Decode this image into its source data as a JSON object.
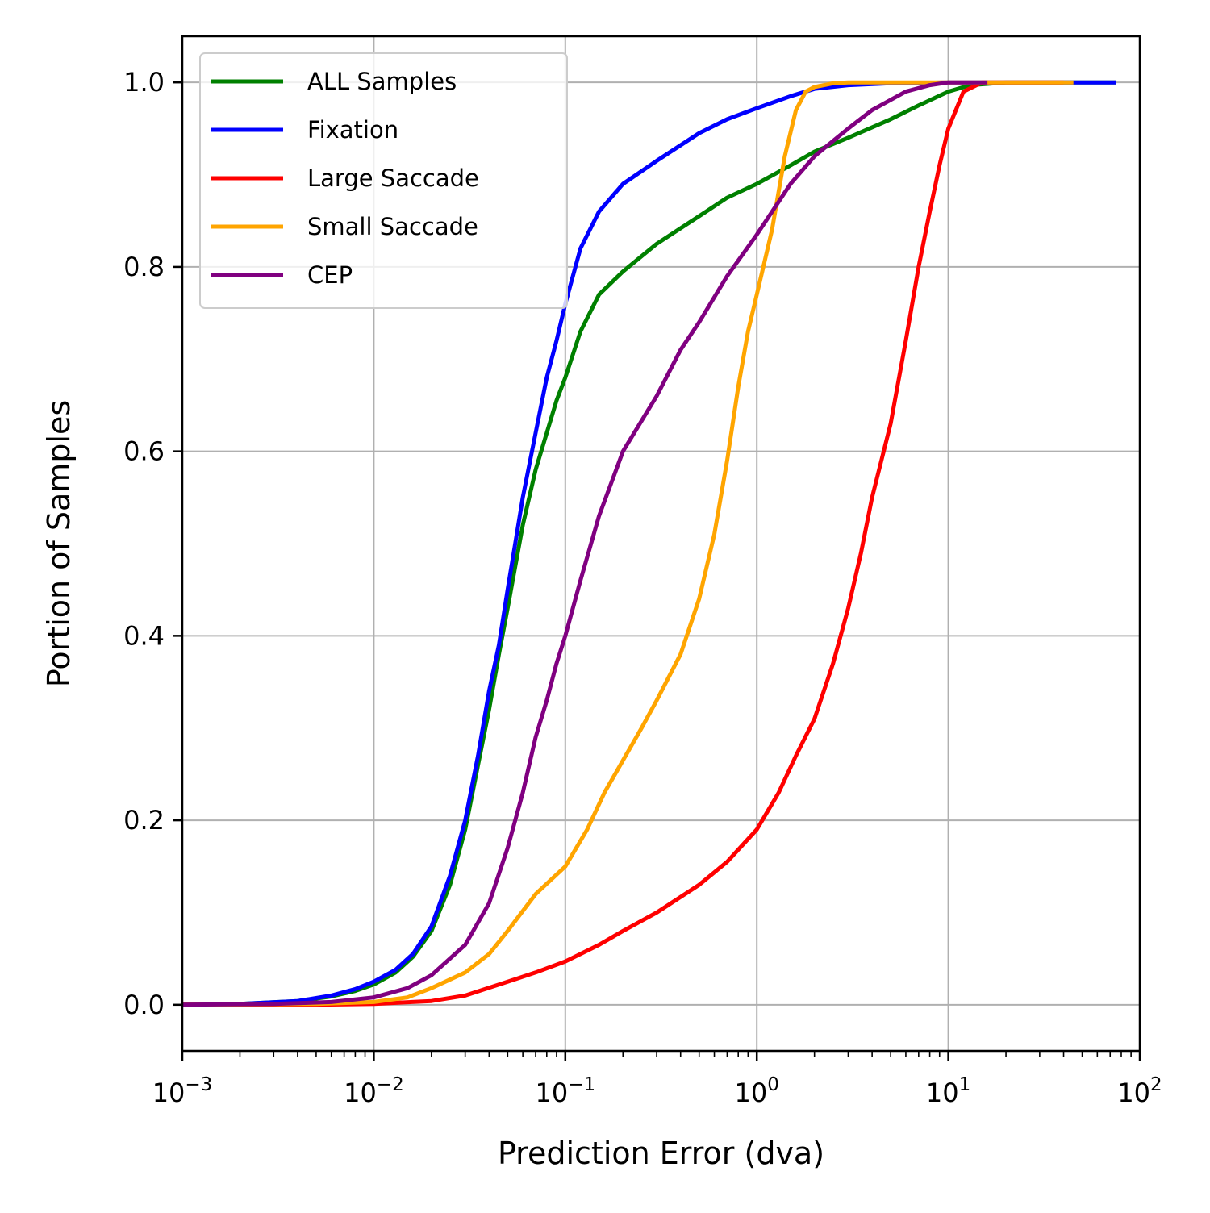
{
  "chart_data": {
    "type": "line",
    "xlabel": "Prediction Error (dva)",
    "ylabel": "Portion of Samples",
    "x_scale": "log",
    "xlim": [
      0.001,
      100
    ],
    "ylim": [
      -0.05,
      1.05
    ],
    "x_ticks": [
      {
        "value": 0.001,
        "base": "10",
        "exp": "−3"
      },
      {
        "value": 0.01,
        "base": "10",
        "exp": "−2"
      },
      {
        "value": 0.1,
        "base": "10",
        "exp": "−1"
      },
      {
        "value": 1,
        "base": "10",
        "exp": "0"
      },
      {
        "value": 10,
        "base": "10",
        "exp": "1"
      },
      {
        "value": 100,
        "base": "10",
        "exp": "2"
      }
    ],
    "y_ticks": [
      {
        "value": 0.0,
        "label": "0.0"
      },
      {
        "value": 0.2,
        "label": "0.2"
      },
      {
        "value": 0.4,
        "label": "0.4"
      },
      {
        "value": 0.6,
        "label": "0.6"
      },
      {
        "value": 0.8,
        "label": "0.8"
      },
      {
        "value": 1.0,
        "label": "1.0"
      }
    ],
    "grid": true,
    "legend_position": "upper-left",
    "series": [
      {
        "name": "ALL Samples",
        "color": "#008000",
        "points": [
          [
            0.001,
            0.0
          ],
          [
            0.002,
            0.001
          ],
          [
            0.004,
            0.004
          ],
          [
            0.006,
            0.009
          ],
          [
            0.008,
            0.015
          ],
          [
            0.01,
            0.022
          ],
          [
            0.013,
            0.035
          ],
          [
            0.016,
            0.052
          ],
          [
            0.02,
            0.08
          ],
          [
            0.025,
            0.13
          ],
          [
            0.03,
            0.19
          ],
          [
            0.035,
            0.26
          ],
          [
            0.04,
            0.32
          ],
          [
            0.045,
            0.38
          ],
          [
            0.05,
            0.43
          ],
          [
            0.06,
            0.52
          ],
          [
            0.07,
            0.58
          ],
          [
            0.08,
            0.62
          ],
          [
            0.09,
            0.655
          ],
          [
            0.1,
            0.68
          ],
          [
            0.12,
            0.73
          ],
          [
            0.15,
            0.77
          ],
          [
            0.2,
            0.795
          ],
          [
            0.3,
            0.825
          ],
          [
            0.5,
            0.855
          ],
          [
            0.7,
            0.875
          ],
          [
            1,
            0.89
          ],
          [
            1.5,
            0.91
          ],
          [
            2,
            0.925
          ],
          [
            3,
            0.94
          ],
          [
            5,
            0.96
          ],
          [
            7,
            0.975
          ],
          [
            10,
            0.99
          ],
          [
            13,
            0.997
          ],
          [
            20,
            1.0
          ],
          [
            75,
            1.0
          ]
        ]
      },
      {
        "name": "Fixation",
        "color": "#0000ff",
        "points": [
          [
            0.001,
            0.0
          ],
          [
            0.002,
            0.001
          ],
          [
            0.004,
            0.004
          ],
          [
            0.006,
            0.01
          ],
          [
            0.008,
            0.017
          ],
          [
            0.01,
            0.025
          ],
          [
            0.013,
            0.038
          ],
          [
            0.016,
            0.055
          ],
          [
            0.02,
            0.085
          ],
          [
            0.025,
            0.14
          ],
          [
            0.03,
            0.2
          ],
          [
            0.035,
            0.27
          ],
          [
            0.04,
            0.34
          ],
          [
            0.045,
            0.39
          ],
          [
            0.05,
            0.45
          ],
          [
            0.06,
            0.55
          ],
          [
            0.07,
            0.62
          ],
          [
            0.08,
            0.68
          ],
          [
            0.09,
            0.72
          ],
          [
            0.1,
            0.76
          ],
          [
            0.12,
            0.82
          ],
          [
            0.15,
            0.86
          ],
          [
            0.2,
            0.89
          ],
          [
            0.3,
            0.915
          ],
          [
            0.5,
            0.945
          ],
          [
            0.7,
            0.96
          ],
          [
            1,
            0.972
          ],
          [
            1.5,
            0.985
          ],
          [
            2,
            0.993
          ],
          [
            3,
            0.997
          ],
          [
            5,
            0.999
          ],
          [
            10,
            1.0
          ],
          [
            75,
            1.0
          ]
        ]
      },
      {
        "name": "Large Saccade",
        "color": "#ff0000",
        "points": [
          [
            0.001,
            0.0
          ],
          [
            0.005,
            0.0
          ],
          [
            0.01,
            0.001
          ],
          [
            0.02,
            0.004
          ],
          [
            0.03,
            0.01
          ],
          [
            0.05,
            0.025
          ],
          [
            0.07,
            0.035
          ],
          [
            0.1,
            0.047
          ],
          [
            0.15,
            0.065
          ],
          [
            0.2,
            0.08
          ],
          [
            0.3,
            0.1
          ],
          [
            0.5,
            0.13
          ],
          [
            0.7,
            0.155
          ],
          [
            1,
            0.19
          ],
          [
            1.3,
            0.23
          ],
          [
            1.6,
            0.27
          ],
          [
            2,
            0.31
          ],
          [
            2.5,
            0.37
          ],
          [
            3,
            0.43
          ],
          [
            3.5,
            0.49
          ],
          [
            4,
            0.55
          ],
          [
            5,
            0.63
          ],
          [
            6,
            0.72
          ],
          [
            7,
            0.8
          ],
          [
            8,
            0.86
          ],
          [
            9,
            0.91
          ],
          [
            10,
            0.95
          ],
          [
            12,
            0.99
          ],
          [
            15,
            1.0
          ],
          [
            40,
            1.0
          ]
        ]
      },
      {
        "name": "Small Saccade",
        "color": "#ffa500",
        "points": [
          [
            0.001,
            0.0
          ],
          [
            0.005,
            0.001
          ],
          [
            0.01,
            0.003
          ],
          [
            0.015,
            0.008
          ],
          [
            0.02,
            0.018
          ],
          [
            0.03,
            0.035
          ],
          [
            0.04,
            0.055
          ],
          [
            0.05,
            0.08
          ],
          [
            0.07,
            0.12
          ],
          [
            0.1,
            0.15
          ],
          [
            0.13,
            0.19
          ],
          [
            0.16,
            0.23
          ],
          [
            0.2,
            0.265
          ],
          [
            0.25,
            0.3
          ],
          [
            0.3,
            0.33
          ],
          [
            0.4,
            0.38
          ],
          [
            0.5,
            0.44
          ],
          [
            0.6,
            0.51
          ],
          [
            0.7,
            0.59
          ],
          [
            0.8,
            0.67
          ],
          [
            0.9,
            0.73
          ],
          [
            1,
            0.77
          ],
          [
            1.2,
            0.84
          ],
          [
            1.4,
            0.92
          ],
          [
            1.6,
            0.97
          ],
          [
            1.8,
            0.99
          ],
          [
            2,
            0.995
          ],
          [
            2.5,
            0.999
          ],
          [
            3,
            1.0
          ],
          [
            45,
            1.0
          ]
        ]
      },
      {
        "name": "CEP",
        "color": "#800080",
        "points": [
          [
            0.001,
            0.0
          ],
          [
            0.003,
            0.001
          ],
          [
            0.006,
            0.003
          ],
          [
            0.01,
            0.008
          ],
          [
            0.015,
            0.018
          ],
          [
            0.02,
            0.032
          ],
          [
            0.03,
            0.065
          ],
          [
            0.04,
            0.11
          ],
          [
            0.05,
            0.17
          ],
          [
            0.06,
            0.23
          ],
          [
            0.07,
            0.29
          ],
          [
            0.08,
            0.33
          ],
          [
            0.09,
            0.37
          ],
          [
            0.1,
            0.4
          ],
          [
            0.12,
            0.46
          ],
          [
            0.15,
            0.53
          ],
          [
            0.2,
            0.6
          ],
          [
            0.3,
            0.66
          ],
          [
            0.4,
            0.71
          ],
          [
            0.5,
            0.74
          ],
          [
            0.7,
            0.79
          ],
          [
            1,
            0.835
          ],
          [
            1.5,
            0.89
          ],
          [
            2,
            0.92
          ],
          [
            3,
            0.95
          ],
          [
            4,
            0.97
          ],
          [
            6,
            0.99
          ],
          [
            8,
            0.997
          ],
          [
            10,
            1.0
          ],
          [
            16,
            1.0
          ]
        ]
      }
    ]
  }
}
